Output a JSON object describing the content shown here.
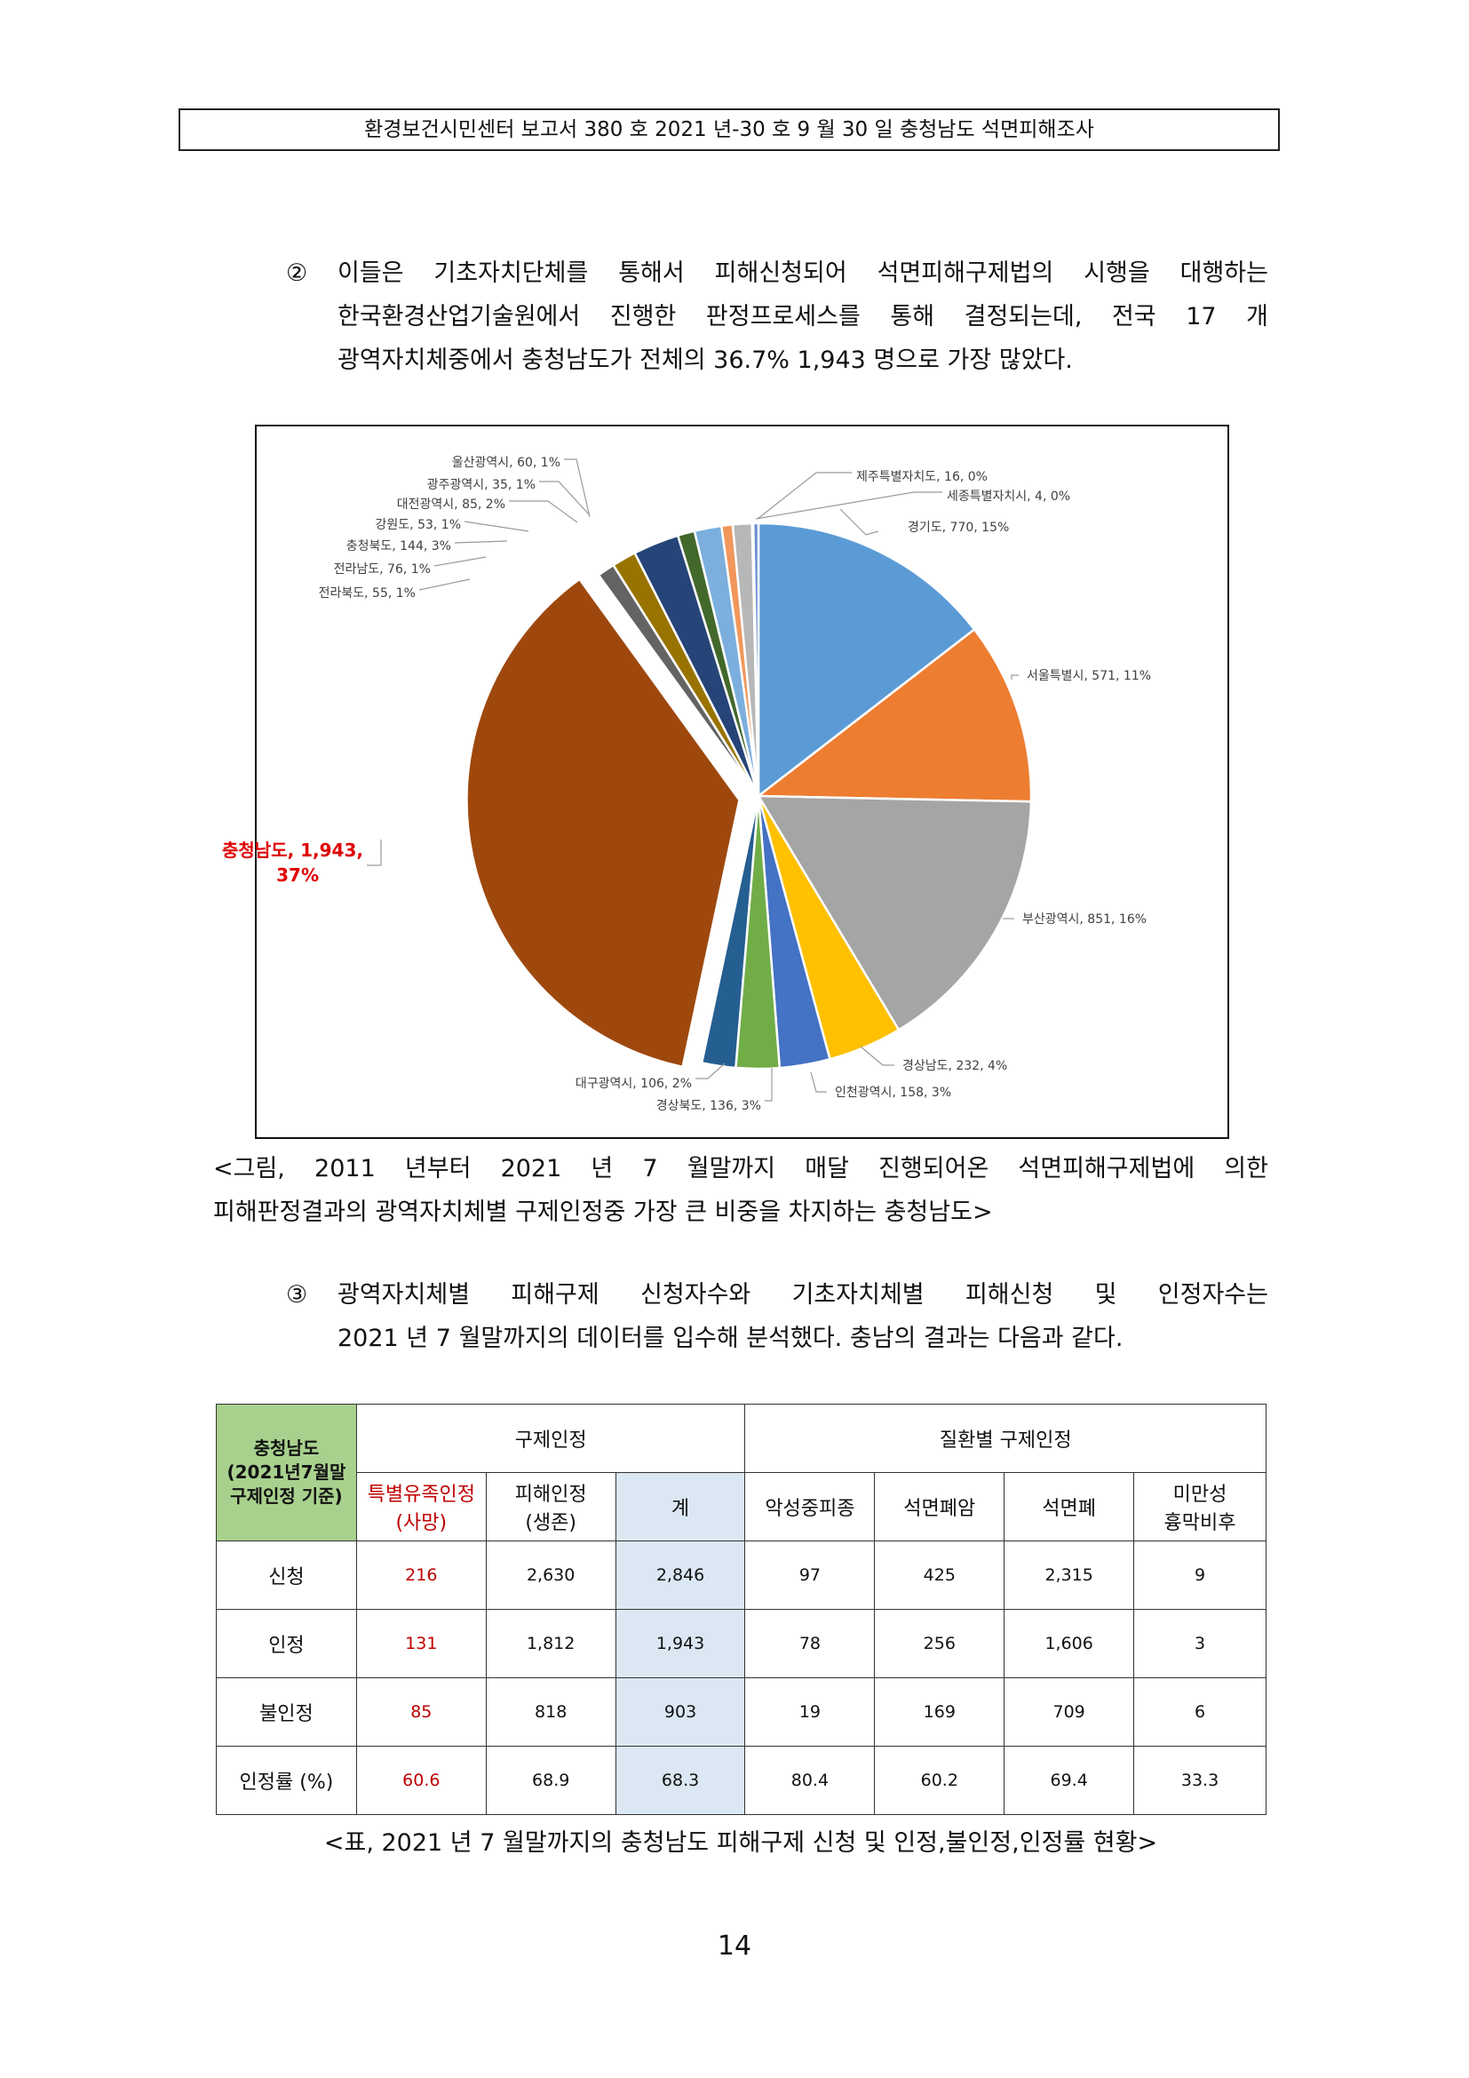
{
  "header": "환경보건시민센터 보고서 380 호 2021 년-30 호 9 월 30 일 충청남도  석면피해조사",
  "para2": {
    "num": "②",
    "lines": [
      "이들은 기초자치단체를 통해서 피해신청되어 석면피해구제법의 시행을 대행하는",
      "한국환경산업기술원에서 진행한 판정프로세스를 통해 결정되는데, 전국 17 개",
      "광역자치체중에서 충청남도가 전체의 36.7% 1,943 명으로 가장 많았다."
    ]
  },
  "chart_data": {
    "type": "pie",
    "title": "",
    "slices": [
      {
        "label": "경기도, 770, 15%",
        "value": 770,
        "color": "#5b9bd5"
      },
      {
        "label": "서울특별시, 571, 11%",
        "value": 571,
        "color": "#ed7d31"
      },
      {
        "label": "부산광역시, 851, 16%",
        "value": 851,
        "color": "#a5a5a5"
      },
      {
        "label": "경상남도, 232, 4%",
        "value": 232,
        "color": "#ffc000"
      },
      {
        "label": "인천광역시, 158, 3%",
        "value": 158,
        "color": "#4472c4"
      },
      {
        "label": "경상북도, 136, 3%",
        "value": 136,
        "color": "#70ad47"
      },
      {
        "label": "대구광역시, 106, 2%",
        "value": 106,
        "color": "#255e91"
      },
      {
        "label": "충청남도, 1,943, 37%",
        "value": 1943,
        "color": "#9e480e",
        "exploded": true,
        "highlight_color": "#e00000"
      },
      {
        "label": "전라북도, 55, 1%",
        "value": 55,
        "color": "#636363"
      },
      {
        "label": "전라남도, 76, 1%",
        "value": 76,
        "color": "#997300"
      },
      {
        "label": "충청북도, 144, 3%",
        "value": 144,
        "color": "#264478"
      },
      {
        "label": "강원도, 53, 1%",
        "value": 53,
        "color": "#43682b"
      },
      {
        "label": "대전광역시, 85, 2%",
        "value": 85,
        "color": "#7cafdd"
      },
      {
        "label": "광주광역시, 35, 1%",
        "value": 35,
        "color": "#f1975a"
      },
      {
        "label": "울산광역시, 60, 1%",
        "value": 60,
        "color": "#b7b7b7"
      },
      {
        "label": "세종특별자치시, 4, 0%",
        "value": 4,
        "color": "#ffcd33"
      },
      {
        "label": "제주특별자치도, 16, 0%",
        "value": 16,
        "color": "#698ed0"
      }
    ]
  },
  "caption1": {
    "lines": [
      "<그림, 2011 년부터 2021 년 7 월말까지 매달 진행되어온 석면피해구제법에 의한",
      "피해판정결과의 광역자치체별 구제인정중 가장 큰 비중을 차지하는 충청남도>"
    ]
  },
  "para3": {
    "num": "③",
    "lines": [
      "광역자치체별 피해구제 신청자수와 기초자치체별 피해신청 및 인정자수는",
      "2021 년 7 월말까지의 데이터를 입수해 분석했다. 충남의 결과는 다음과 같다."
    ]
  },
  "table": {
    "corner": [
      "충청남도",
      "(2021년7월말",
      "구제인정 기준)"
    ],
    "group1": "구제인정",
    "group2": "질환별 구제인정",
    "cols": [
      [
        "특별유족인정",
        "(사망)"
      ],
      [
        "피해인정",
        "(생존)"
      ],
      [
        "계"
      ],
      [
        "악성중피종"
      ],
      [
        "석면폐암"
      ],
      [
        "석면폐"
      ],
      [
        "미만성",
        "흉막비후"
      ]
    ],
    "rows": [
      {
        "label": "신청",
        "values": [
          "216",
          "2,630",
          "2,846",
          "97",
          "425",
          "2,315",
          "9"
        ]
      },
      {
        "label": "인정",
        "values": [
          "131",
          "1,812",
          "1,943",
          "78",
          "256",
          "1,606",
          "3"
        ]
      },
      {
        "label": "불인정",
        "values": [
          "85",
          "818",
          "903",
          "19",
          "169",
          "709",
          "6"
        ]
      },
      {
        "label": "인정률 (%)",
        "values": [
          "60.6",
          "68.9",
          "68.3",
          "80.4",
          "60.2",
          "69.4",
          "33.3"
        ]
      }
    ]
  },
  "caption2": "<표, 2021 년 7 월말까지의 충청남도 피해구제 신청 및 인정,불인정,인정률 현황>",
  "page_number": "14"
}
